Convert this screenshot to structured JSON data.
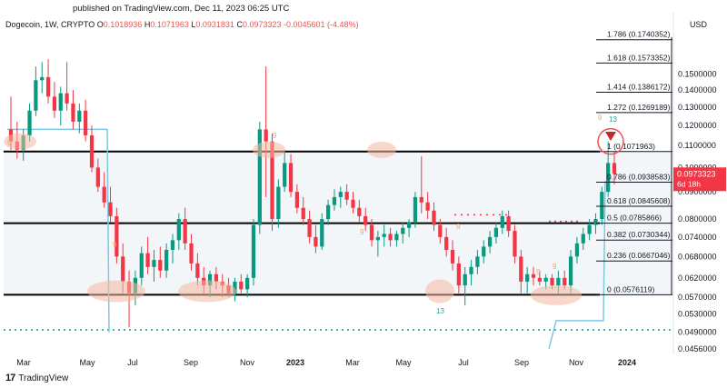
{
  "header": {
    "published": "published on TradingView.com, Dec 11, 2023 06:25 UTC",
    "symbol": "Dogecoin, 1W, CRYPTO",
    "open_label": "O",
    "open": "0.1018936",
    "high_label": "H",
    "high": "0.1071963",
    "low_label": "L",
    "low": "0.0931831",
    "close_label": "C",
    "close": "0.0973323",
    "change": "-0.0045601 (-4.48%)",
    "currency": "USD"
  },
  "footer": {
    "brand": "TradingView"
  },
  "colors": {
    "up": "#089981",
    "down": "#f23645",
    "fib": "#131722",
    "highlight": "#f4b8a0"
  },
  "chart_data": {
    "type": "candlestick",
    "title": "Dogecoin, 1W, CRYPTO",
    "x_ticks": [
      "Mar",
      "May",
      "Jul",
      "Sep",
      "Nov",
      "2023",
      "Mar",
      "May",
      "Jul",
      "Sep",
      "Nov",
      "2024"
    ],
    "y_ticks": [
      "0.1500000",
      "0.1400000",
      "0.1300000",
      "0.1200000",
      "0.1100000",
      "0.1000000",
      "0.0900000",
      "0.0800000",
      "0.0740000",
      "0.0680000",
      "0.0620000",
      "0.0570000",
      "0.0530000",
      "0.0490000",
      "0.0456000"
    ],
    "ylim": [
      0.0445,
      0.178
    ],
    "current_price": "0.0973323",
    "countdown": "6d 18h",
    "fib_levels": [
      {
        "label": "1.786 (0.1740352)",
        "value": 0.1740352
      },
      {
        "label": "1.618 (0.1573352)",
        "value": 0.1573352
      },
      {
        "label": "1.414 (0.1386172)",
        "value": 0.1386172
      },
      {
        "label": "1.272 (0.1269189)",
        "value": 0.1269189
      },
      {
        "label": "1 (0.1071963)",
        "value": 0.1071963
      },
      {
        "label": "0.786 (0.0938583)",
        "value": 0.0938583
      },
      {
        "label": "0.618 (0.0845608)",
        "value": 0.0845608
      },
      {
        "label": "0.5 (0.0785866)",
        "value": 0.0785866
      },
      {
        "label": "0.382 (0.0730344)",
        "value": 0.0730344
      },
      {
        "label": "0.236 (0.0667046)",
        "value": 0.0667046
      },
      {
        "label": "0 (0.0576119)",
        "value": 0.0576119
      }
    ],
    "range_lines": [
      0.1071963,
      0.0785866,
      0.0576119
    ],
    "td_labels": [
      "9",
      "13",
      "9",
      "9",
      "9",
      "13",
      "9",
      "9",
      "9",
      "9"
    ],
    "candles": [
      {
        "o": 0.118,
        "h": 0.136,
        "l": 0.108,
        "c": 0.112
      },
      {
        "o": 0.112,
        "h": 0.122,
        "l": 0.104,
        "c": 0.108
      },
      {
        "o": 0.108,
        "h": 0.118,
        "l": 0.103,
        "c": 0.115
      },
      {
        "o": 0.115,
        "h": 0.132,
        "l": 0.112,
        "c": 0.128
      },
      {
        "o": 0.128,
        "h": 0.155,
        "l": 0.125,
        "c": 0.146
      },
      {
        "o": 0.146,
        "h": 0.158,
        "l": 0.138,
        "c": 0.148
      },
      {
        "o": 0.148,
        "h": 0.16,
        "l": 0.132,
        "c": 0.136
      },
      {
        "o": 0.136,
        "h": 0.145,
        "l": 0.124,
        "c": 0.128
      },
      {
        "o": 0.128,
        "h": 0.142,
        "l": 0.12,
        "c": 0.138
      },
      {
        "o": 0.138,
        "h": 0.158,
        "l": 0.128,
        "c": 0.132
      },
      {
        "o": 0.132,
        "h": 0.14,
        "l": 0.118,
        "c": 0.122
      },
      {
        "o": 0.122,
        "h": 0.132,
        "l": 0.116,
        "c": 0.128
      },
      {
        "o": 0.128,
        "h": 0.134,
        "l": 0.112,
        "c": 0.115
      },
      {
        "o": 0.115,
        "h": 0.12,
        "l": 0.098,
        "c": 0.1
      },
      {
        "o": 0.1,
        "h": 0.104,
        "l": 0.09,
        "c": 0.092
      },
      {
        "o": 0.092,
        "h": 0.098,
        "l": 0.084,
        "c": 0.086
      },
      {
        "o": 0.086,
        "h": 0.092,
        "l": 0.079,
        "c": 0.081
      },
      {
        "o": 0.081,
        "h": 0.084,
        "l": 0.066,
        "c": 0.068
      },
      {
        "o": 0.068,
        "h": 0.072,
        "l": 0.058,
        "c": 0.061
      },
      {
        "o": 0.061,
        "h": 0.064,
        "l": 0.05,
        "c": 0.058
      },
      {
        "o": 0.058,
        "h": 0.064,
        "l": 0.055,
        "c": 0.062
      },
      {
        "o": 0.062,
        "h": 0.071,
        "l": 0.06,
        "c": 0.069
      },
      {
        "o": 0.069,
        "h": 0.074,
        "l": 0.063,
        "c": 0.065
      },
      {
        "o": 0.065,
        "h": 0.07,
        "l": 0.061,
        "c": 0.067
      },
      {
        "o": 0.067,
        "h": 0.071,
        "l": 0.062,
        "c": 0.064
      },
      {
        "o": 0.064,
        "h": 0.072,
        "l": 0.062,
        "c": 0.07
      },
      {
        "o": 0.07,
        "h": 0.075,
        "l": 0.066,
        "c": 0.073
      },
      {
        "o": 0.073,
        "h": 0.082,
        "l": 0.07,
        "c": 0.08
      },
      {
        "o": 0.08,
        "h": 0.084,
        "l": 0.07,
        "c": 0.072
      },
      {
        "o": 0.072,
        "h": 0.075,
        "l": 0.064,
        "c": 0.066
      },
      {
        "o": 0.066,
        "h": 0.069,
        "l": 0.06,
        "c": 0.062
      },
      {
        "o": 0.062,
        "h": 0.065,
        "l": 0.058,
        "c": 0.06
      },
      {
        "o": 0.06,
        "h": 0.064,
        "l": 0.057,
        "c": 0.063
      },
      {
        "o": 0.063,
        "h": 0.065,
        "l": 0.059,
        "c": 0.061
      },
      {
        "o": 0.061,
        "h": 0.063,
        "l": 0.057,
        "c": 0.06
      },
      {
        "o": 0.06,
        "h": 0.062,
        "l": 0.057,
        "c": 0.058
      },
      {
        "o": 0.058,
        "h": 0.062,
        "l": 0.056,
        "c": 0.061
      },
      {
        "o": 0.061,
        "h": 0.063,
        "l": 0.058,
        "c": 0.059
      },
      {
        "o": 0.059,
        "h": 0.063,
        "l": 0.057,
        "c": 0.062
      },
      {
        "o": 0.062,
        "h": 0.08,
        "l": 0.06,
        "c": 0.078
      },
      {
        "o": 0.078,
        "h": 0.122,
        "l": 0.075,
        "c": 0.118
      },
      {
        "o": 0.118,
        "h": 0.155,
        "l": 0.088,
        "c": 0.112
      },
      {
        "o": 0.112,
        "h": 0.116,
        "l": 0.076,
        "c": 0.08
      },
      {
        "o": 0.08,
        "h": 0.095,
        "l": 0.077,
        "c": 0.092
      },
      {
        "o": 0.092,
        "h": 0.108,
        "l": 0.09,
        "c": 0.102
      },
      {
        "o": 0.102,
        "h": 0.106,
        "l": 0.088,
        "c": 0.09
      },
      {
        "o": 0.09,
        "h": 0.093,
        "l": 0.082,
        "c": 0.084
      },
      {
        "o": 0.084,
        "h": 0.088,
        "l": 0.078,
        "c": 0.08
      },
      {
        "o": 0.08,
        "h": 0.083,
        "l": 0.072,
        "c": 0.074
      },
      {
        "o": 0.074,
        "h": 0.078,
        "l": 0.069,
        "c": 0.071
      },
      {
        "o": 0.071,
        "h": 0.082,
        "l": 0.07,
        "c": 0.08
      },
      {
        "o": 0.08,
        "h": 0.087,
        "l": 0.078,
        "c": 0.085
      },
      {
        "o": 0.085,
        "h": 0.091,
        "l": 0.083,
        "c": 0.088
      },
      {
        "o": 0.088,
        "h": 0.092,
        "l": 0.084,
        "c": 0.09
      },
      {
        "o": 0.09,
        "h": 0.093,
        "l": 0.085,
        "c": 0.087
      },
      {
        "o": 0.087,
        "h": 0.09,
        "l": 0.082,
        "c": 0.084
      },
      {
        "o": 0.084,
        "h": 0.087,
        "l": 0.079,
        "c": 0.081
      },
      {
        "o": 0.081,
        "h": 0.084,
        "l": 0.076,
        "c": 0.078
      },
      {
        "o": 0.078,
        "h": 0.08,
        "l": 0.071,
        "c": 0.073
      },
      {
        "o": 0.073,
        "h": 0.076,
        "l": 0.068,
        "c": 0.074
      },
      {
        "o": 0.074,
        "h": 0.078,
        "l": 0.071,
        "c": 0.075
      },
      {
        "o": 0.075,
        "h": 0.077,
        "l": 0.071,
        "c": 0.073
      },
      {
        "o": 0.073,
        "h": 0.076,
        "l": 0.071,
        "c": 0.075
      },
      {
        "o": 0.075,
        "h": 0.079,
        "l": 0.072,
        "c": 0.077
      },
      {
        "o": 0.077,
        "h": 0.08,
        "l": 0.074,
        "c": 0.079
      },
      {
        "o": 0.079,
        "h": 0.09,
        "l": 0.077,
        "c": 0.088
      },
      {
        "o": 0.088,
        "h": 0.105,
        "l": 0.082,
        "c": 0.086
      },
      {
        "o": 0.086,
        "h": 0.09,
        "l": 0.08,
        "c": 0.083
      },
      {
        "o": 0.083,
        "h": 0.086,
        "l": 0.076,
        "c": 0.078
      },
      {
        "o": 0.078,
        "h": 0.08,
        "l": 0.072,
        "c": 0.074
      },
      {
        "o": 0.074,
        "h": 0.077,
        "l": 0.068,
        "c": 0.07
      },
      {
        "o": 0.07,
        "h": 0.073,
        "l": 0.064,
        "c": 0.066
      },
      {
        "o": 0.066,
        "h": 0.068,
        "l": 0.058,
        "c": 0.06
      },
      {
        "o": 0.06,
        "h": 0.065,
        "l": 0.055,
        "c": 0.063
      },
      {
        "o": 0.063,
        "h": 0.067,
        "l": 0.06,
        "c": 0.065
      },
      {
        "o": 0.065,
        "h": 0.07,
        "l": 0.063,
        "c": 0.068
      },
      {
        "o": 0.068,
        "h": 0.073,
        "l": 0.066,
        "c": 0.071
      },
      {
        "o": 0.071,
        "h": 0.076,
        "l": 0.069,
        "c": 0.074
      },
      {
        "o": 0.074,
        "h": 0.079,
        "l": 0.072,
        "c": 0.077
      },
      {
        "o": 0.077,
        "h": 0.083,
        "l": 0.075,
        "c": 0.081
      },
      {
        "o": 0.081,
        "h": 0.083,
        "l": 0.074,
        "c": 0.076
      },
      {
        "o": 0.076,
        "h": 0.078,
        "l": 0.066,
        "c": 0.068
      },
      {
        "o": 0.068,
        "h": 0.07,
        "l": 0.058,
        "c": 0.061
      },
      {
        "o": 0.061,
        "h": 0.065,
        "l": 0.058,
        "c": 0.063
      },
      {
        "o": 0.063,
        "h": 0.065,
        "l": 0.06,
        "c": 0.062
      },
      {
        "o": 0.062,
        "h": 0.064,
        "l": 0.06,
        "c": 0.061
      },
      {
        "o": 0.061,
        "h": 0.063,
        "l": 0.059,
        "c": 0.062
      },
      {
        "o": 0.062,
        "h": 0.063,
        "l": 0.059,
        "c": 0.06
      },
      {
        "o": 0.06,
        "h": 0.064,
        "l": 0.058,
        "c": 0.062
      },
      {
        "o": 0.062,
        "h": 0.064,
        "l": 0.059,
        "c": 0.06
      },
      {
        "o": 0.06,
        "h": 0.07,
        "l": 0.058,
        "c": 0.068
      },
      {
        "o": 0.068,
        "h": 0.074,
        "l": 0.066,
        "c": 0.072
      },
      {
        "o": 0.072,
        "h": 0.077,
        "l": 0.07,
        "c": 0.075
      },
      {
        "o": 0.075,
        "h": 0.08,
        "l": 0.073,
        "c": 0.078
      },
      {
        "o": 0.078,
        "h": 0.082,
        "l": 0.075,
        "c": 0.08
      },
      {
        "o": 0.08,
        "h": 0.092,
        "l": 0.078,
        "c": 0.09
      },
      {
        "o": 0.09,
        "h": 0.112,
        "l": 0.088,
        "c": 0.102
      },
      {
        "o": 0.102,
        "h": 0.107,
        "l": 0.093,
        "c": 0.0973
      }
    ]
  }
}
